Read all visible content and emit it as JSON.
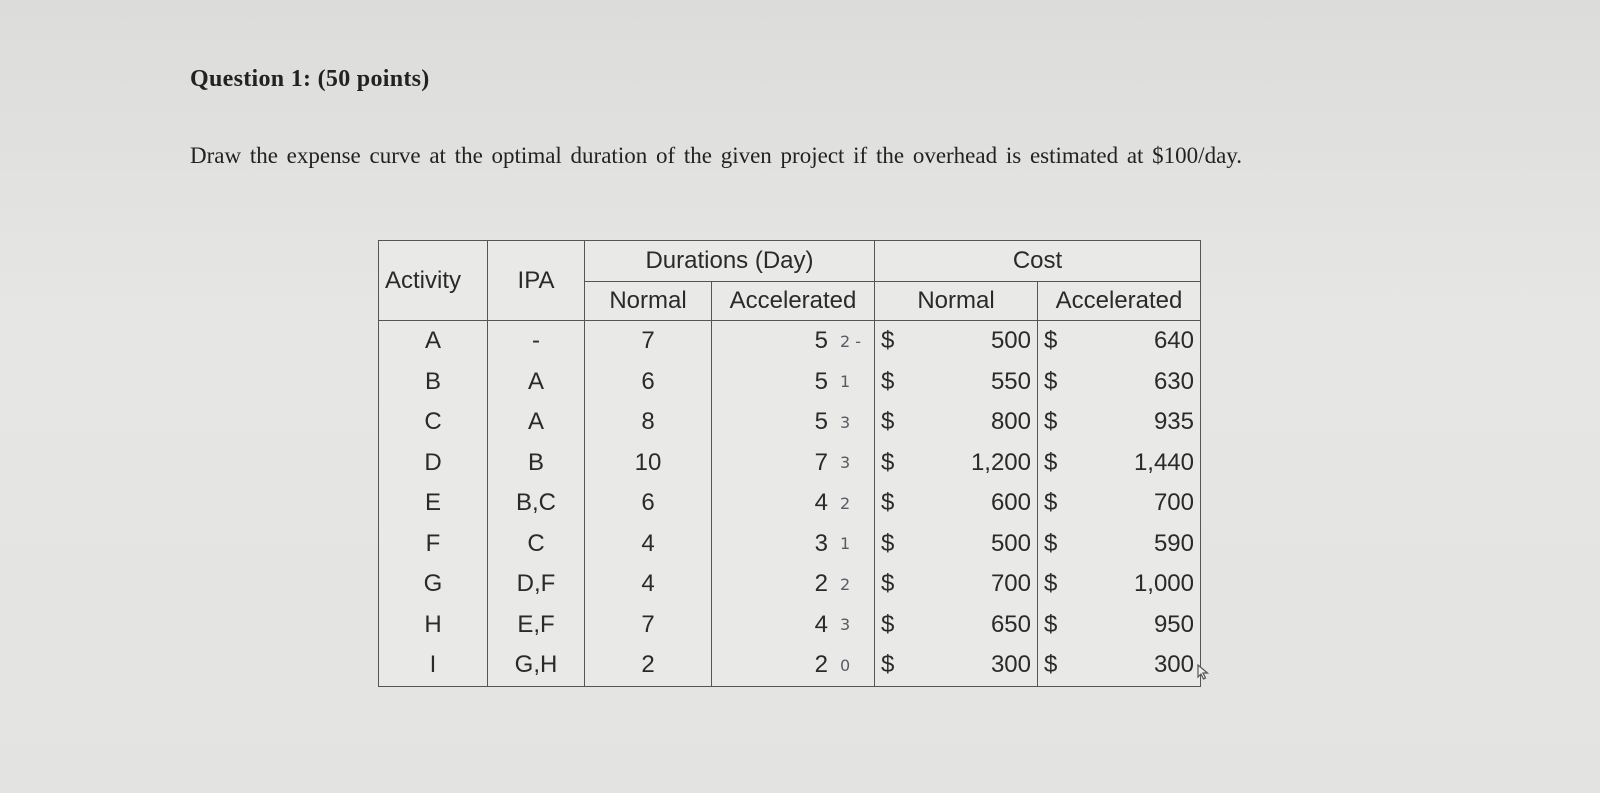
{
  "question": {
    "title": "Question 1: (50 points)",
    "text": "Draw the expense curve at the optimal duration of the given project if the overhead is estimated at $100/day."
  },
  "table": {
    "headers": {
      "activity": "Activity",
      "ipa": "IPA",
      "durations": "Durations (Day)",
      "cost": "Cost",
      "normal": "Normal",
      "accelerated": "Accelerated",
      "cost_normal": "Normal",
      "cost_accelerated": "Accelerated"
    },
    "currency": "$",
    "rows": [
      {
        "activity": "A",
        "ipa": "-",
        "dur_normal": "7",
        "dur_accel": "5",
        "note": "2 -",
        "cost_normal": "500",
        "cost_accel": "640"
      },
      {
        "activity": "B",
        "ipa": "A",
        "dur_normal": "6",
        "dur_accel": "5",
        "note": "1",
        "cost_normal": "550",
        "cost_accel": "630"
      },
      {
        "activity": "C",
        "ipa": "A",
        "dur_normal": "8",
        "dur_accel": "5",
        "note": "3",
        "cost_normal": "800",
        "cost_accel": "935"
      },
      {
        "activity": "D",
        "ipa": "B",
        "dur_normal": "10",
        "dur_accel": "7",
        "note": "3",
        "cost_normal": "1,200",
        "cost_accel": "1,440"
      },
      {
        "activity": "E",
        "ipa": "B,C",
        "dur_normal": "6",
        "dur_accel": "4",
        "note": "2",
        "cost_normal": "600",
        "cost_accel": "700"
      },
      {
        "activity": "F",
        "ipa": "C",
        "dur_normal": "4",
        "dur_accel": "3",
        "note": "1",
        "cost_normal": "500",
        "cost_accel": "590"
      },
      {
        "activity": "G",
        "ipa": "D,F",
        "dur_normal": "4",
        "dur_accel": "2",
        "note": "2",
        "cost_normal": "700",
        "cost_accel": "1,000"
      },
      {
        "activity": "H",
        "ipa": "E,F",
        "dur_normal": "7",
        "dur_accel": "4",
        "note": "3",
        "cost_normal": "650",
        "cost_accel": "950"
      },
      {
        "activity": "I",
        "ipa": "G,H",
        "dur_normal": "2",
        "dur_accel": "2",
        "note": "0",
        "cost_normal": "300",
        "cost_accel": "300"
      }
    ]
  }
}
